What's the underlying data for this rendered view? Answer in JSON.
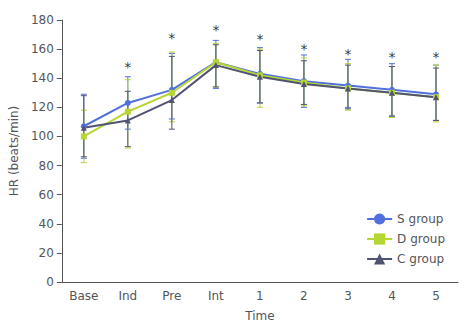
{
  "chart_data": {
    "type": "line",
    "categories": [
      "Base",
      "Ind",
      "Pre",
      "Int",
      "1",
      "2",
      "3",
      "4",
      "5"
    ],
    "series": [
      {
        "name": "S group",
        "marker": "circle",
        "values": [
          107,
          123,
          132,
          151,
          143,
          138,
          135,
          132,
          129
        ],
        "err_low": [
          22,
          18,
          20,
          18,
          20,
          18,
          15,
          18,
          18
        ],
        "err_high": [
          22,
          18,
          25,
          15,
          18,
          18,
          18,
          18,
          20
        ]
      },
      {
        "name": "D group",
        "marker": "square",
        "values": [
          100,
          117,
          130,
          151,
          142,
          137,
          133,
          130,
          127
        ],
        "err_low": [
          18,
          25,
          20,
          17,
          22,
          16,
          15,
          17,
          17
        ],
        "err_high": [
          18,
          22,
          28,
          13,
          18,
          17,
          17,
          18,
          22
        ]
      },
      {
        "name": "C group",
        "marker": "triangle",
        "values": [
          106,
          111,
          125,
          149,
          141,
          136,
          133,
          130,
          127
        ],
        "err_low": [
          20,
          18,
          20,
          15,
          18,
          14,
          14,
          16,
          16
        ],
        "err_high": [
          22,
          20,
          30,
          14,
          18,
          16,
          16,
          18,
          20
        ]
      }
    ],
    "annotations": [
      {
        "text": "*",
        "x": "Ind",
        "y": 143
      },
      {
        "text": "*",
        "x": "Pre",
        "y": 163
      },
      {
        "text": "*",
        "x": "Int",
        "y": 168
      },
      {
        "text": "*",
        "x": "1",
        "y": 162
      },
      {
        "text": "*",
        "x": "2",
        "y": 155
      },
      {
        "text": "*",
        "x": "3",
        "y": 152
      },
      {
        "text": "*",
        "x": "4",
        "y": 150
      },
      {
        "text": "*",
        "x": "5",
        "y": 150
      }
    ],
    "xlabel": "Time",
    "ylabel": "HR (beats/min)",
    "ylim": [
      0,
      180
    ],
    "yticks": [
      0,
      20,
      40,
      60,
      80,
      100,
      120,
      140,
      160,
      180
    ],
    "grid": false,
    "legend": "lower right"
  }
}
